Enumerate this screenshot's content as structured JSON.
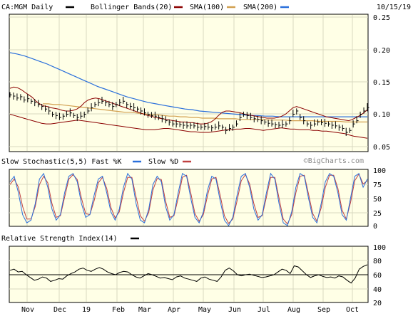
{
  "header": {
    "date": "10/15/19",
    "watermark": "©BigCharts.com"
  },
  "legend": {
    "symbol": "CA:MGM Daily",
    "bollinger": "Bollinger Bands(20)",
    "sma100": "SMA(100)",
    "sma200": "SMA(200)",
    "stoch": "Slow Stochastic(5,5) Fast %K",
    "stoch_slow": "Slow %D",
    "rsi": "Relative Strength Index(14)"
  },
  "colors": {
    "price": "#000000",
    "bollinger": "#8b0000",
    "sma100": "#d2a050",
    "sma200": "#2a6fdb",
    "fastk": "#2a6fdb",
    "slowd": "#c04040",
    "background": "#ffffe6"
  },
  "chart_data": [
    {
      "type": "line",
      "name": "price",
      "x_labels": [
        "Nov",
        "Dec",
        "19",
        "Feb",
        "Mar",
        "Apr",
        "May",
        "Jun",
        "Jul",
        "Aug",
        "Sep",
        "Oct"
      ],
      "y_ticks": [
        "0.25",
        "0.20",
        "0.15",
        "0.10",
        "0.05"
      ],
      "ylim": [
        0.05,
        0.25
      ],
      "close": [
        0.13,
        0.128,
        0.125,
        0.127,
        0.122,
        0.124,
        0.12,
        0.118,
        0.115,
        0.112,
        0.108,
        0.105,
        0.1,
        0.098,
        0.095,
        0.097,
        0.1,
        0.102,
        0.098,
        0.095,
        0.097,
        0.1,
        0.105,
        0.11,
        0.115,
        0.118,
        0.12,
        0.118,
        0.115,
        0.112,
        0.115,
        0.118,
        0.12,
        0.115,
        0.112,
        0.11,
        0.108,
        0.105,
        0.102,
        0.1,
        0.098,
        0.097,
        0.095,
        0.093,
        0.09,
        0.088,
        0.085,
        0.085,
        0.084,
        0.083,
        0.082,
        0.083,
        0.082,
        0.08,
        0.08,
        0.081,
        0.08,
        0.079,
        0.08,
        0.082,
        0.08,
        0.075,
        0.078,
        0.08,
        0.085,
        0.095,
        0.1,
        0.098,
        0.095,
        0.093,
        0.092,
        0.09,
        0.088,
        0.086,
        0.085,
        0.084,
        0.083,
        0.084,
        0.085,
        0.09,
        0.1,
        0.105,
        0.095,
        0.09,
        0.085,
        0.083,
        0.085,
        0.088,
        0.087,
        0.086,
        0.085,
        0.083,
        0.082,
        0.08,
        0.078,
        0.072,
        0.075,
        0.085,
        0.09,
        0.1,
        0.105,
        0.11
      ],
      "bb_upper": [
        0.14,
        0.142,
        0.141,
        0.138,
        0.134,
        0.13,
        0.126,
        0.12,
        0.116,
        0.113,
        0.112,
        0.11,
        0.109,
        0.108,
        0.106,
        0.105,
        0.105,
        0.106,
        0.108,
        0.112,
        0.118,
        0.122,
        0.124,
        0.125,
        0.124,
        0.122,
        0.12,
        0.118,
        0.116,
        0.114,
        0.112,
        0.11,
        0.108,
        0.106,
        0.104,
        0.102,
        0.1,
        0.098,
        0.097,
        0.095,
        0.094,
        0.093,
        0.092,
        0.091,
        0.09,
        0.089,
        0.088,
        0.088,
        0.087,
        0.087,
        0.086,
        0.085,
        0.085,
        0.086,
        0.088,
        0.092,
        0.098,
        0.103,
        0.105,
        0.105,
        0.104,
        0.103,
        0.102,
        0.1,
        0.099,
        0.098,
        0.097,
        0.096,
        0.095,
        0.094,
        0.094,
        0.094,
        0.095,
        0.097,
        0.1,
        0.105,
        0.11,
        0.112,
        0.11,
        0.108,
        0.106,
        0.104,
        0.102,
        0.1,
        0.098,
        0.096,
        0.095,
        0.094,
        0.093,
        0.092,
        0.091,
        0.09,
        0.092,
        0.095,
        0.098,
        0.102,
        0.107
      ],
      "bb_lower": [
        0.1,
        0.098,
        0.096,
        0.094,
        0.092,
        0.09,
        0.088,
        0.086,
        0.085,
        0.085,
        0.086,
        0.087,
        0.088,
        0.089,
        0.09,
        0.091,
        0.09,
        0.089,
        0.088,
        0.087,
        0.086,
        0.085,
        0.084,
        0.083,
        0.082,
        0.081,
        0.08,
        0.079,
        0.078,
        0.077,
        0.076,
        0.076,
        0.076,
        0.077,
        0.078,
        0.078,
        0.077,
        0.076,
        0.075,
        0.074,
        0.073,
        0.073,
        0.072,
        0.072,
        0.072,
        0.073,
        0.074,
        0.075,
        0.076,
        0.076,
        0.077,
        0.077,
        0.078,
        0.078,
        0.077,
        0.076,
        0.075,
        0.076,
        0.077,
        0.078,
        0.079,
        0.078,
        0.077,
        0.077,
        0.076,
        0.076,
        0.076,
        0.075,
        0.075,
        0.074,
        0.074,
        0.073,
        0.072,
        0.071,
        0.07,
        0.068,
        0.066,
        0.065,
        0.064,
        0.063
      ],
      "sma100": [
        0.116,
        0.116,
        0.115,
        0.115,
        0.114,
        0.113,
        0.112,
        0.111,
        0.11,
        0.109,
        0.108,
        0.107,
        0.106,
        0.105,
        0.104,
        0.103,
        0.103,
        0.102,
        0.101,
        0.1,
        0.099,
        0.099,
        0.098,
        0.097,
        0.097,
        0.096,
        0.096,
        0.095,
        0.095,
        0.094,
        0.094,
        0.094,
        0.093,
        0.093,
        0.093,
        0.093,
        0.092,
        0.092,
        0.092,
        0.092,
        0.092,
        0.091,
        0.091,
        0.091,
        0.091,
        0.09,
        0.09,
        0.09,
        0.09,
        0.09,
        0.089,
        0.089,
        0.089,
        0.089,
        0.089,
        0.088,
        0.088,
        0.088,
        0.088,
        0.088
      ],
      "sma200": [
        0.195,
        0.193,
        0.19,
        0.186,
        0.182,
        0.178,
        0.173,
        0.168,
        0.163,
        0.158,
        0.153,
        0.148,
        0.143,
        0.139,
        0.135,
        0.131,
        0.127,
        0.124,
        0.121,
        0.118,
        0.116,
        0.114,
        0.112,
        0.11,
        0.108,
        0.107,
        0.105,
        0.104,
        0.103,
        0.102,
        0.101,
        0.1,
        0.099,
        0.098,
        0.098,
        0.097,
        0.097,
        0.096,
        0.096,
        0.096,
        0.096,
        0.096,
        0.096,
        0.096,
        0.096,
        0.096,
        0.096,
        0.096,
        0.096,
        0.096
      ]
    },
    {
      "type": "line",
      "name": "stochastic",
      "y_ticks": [
        "100",
        "75",
        "50",
        "25",
        "0"
      ],
      "ylim": [
        0,
        100
      ],
      "fast_k": [
        80,
        90,
        60,
        20,
        5,
        10,
        40,
        85,
        95,
        70,
        30,
        10,
        20,
        60,
        90,
        95,
        80,
        40,
        15,
        20,
        55,
        85,
        90,
        60,
        25,
        10,
        30,
        70,
        95,
        85,
        40,
        10,
        5,
        30,
        75,
        90,
        80,
        35,
        10,
        20,
        60,
        95,
        90,
        50,
        15,
        5,
        25,
        65,
        90,
        85,
        45,
        10,
        0,
        15,
        55,
        90,
        95,
        70,
        30,
        10,
        20,
        60,
        95,
        85,
        40,
        5,
        0,
        25,
        70,
        95,
        90,
        50,
        15,
        5,
        40,
        80,
        95,
        90,
        60,
        20,
        10,
        50,
        90,
        95,
        70,
        85
      ],
      "slow_d": [
        75,
        85,
        70,
        35,
        12,
        12,
        35,
        75,
        90,
        78,
        40,
        15,
        18,
        52,
        85,
        93,
        84,
        50,
        22,
        20,
        45,
        78,
        88,
        68,
        33,
        14,
        25,
        60,
        88,
        88,
        52,
        18,
        8,
        24,
        65,
        86,
        84,
        45,
        15,
        18,
        50,
        88,
        92,
        60,
        22,
        8,
        20,
        55,
        85,
        88,
        55,
        18,
        4,
        12,
        45,
        82,
        93,
        76,
        40,
        15,
        18,
        52,
        88,
        88,
        50,
        12,
        3,
        20,
        60,
        90,
        92,
        58,
        22,
        8,
        32,
        70,
        92,
        92,
        68,
        28,
        12,
        42,
        82,
        94,
        76,
        82
      ]
    },
    {
      "type": "line",
      "name": "rsi",
      "y_ticks": [
        "100",
        "80",
        "60",
        "40",
        "20"
      ],
      "ylim": [
        0,
        100
      ],
      "values": [
        58,
        60,
        55,
        56,
        50,
        45,
        40,
        42,
        46,
        44,
        38,
        40,
        43,
        42,
        48,
        52,
        55,
        60,
        62,
        58,
        56,
        60,
        63,
        60,
        55,
        52,
        50,
        54,
        56,
        55,
        50,
        46,
        44,
        48,
        52,
        50,
        47,
        44,
        45,
        43,
        41,
        46,
        48,
        44,
        42,
        40,
        38,
        44,
        46,
        42,
        40,
        38,
        46,
        58,
        62,
        57,
        50,
        48,
        50,
        51,
        49,
        47,
        45,
        46,
        48,
        50,
        55,
        60,
        58,
        52,
        66,
        64,
        57,
        50,
        45,
        48,
        50,
        47,
        45,
        46,
        44,
        48,
        46,
        40,
        35,
        44,
        60,
        65,
        68
      ]
    }
  ]
}
